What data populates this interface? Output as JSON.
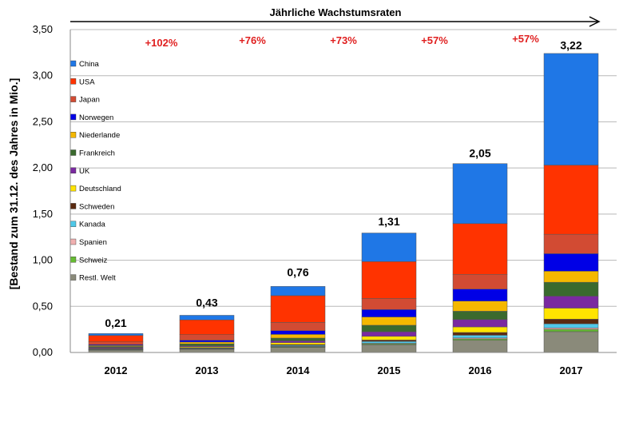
{
  "chart_data": {
    "type": "bar",
    "stacked": true,
    "title": "Jährliche Wachstumsraten",
    "ylabel": "[Bestand zum 31.12. des Jahres in Mio.]",
    "xlabel": "",
    "ylim": [
      0,
      3.5
    ],
    "ytick_step": 0.5,
    "ytick_labels": [
      "0,00",
      "0,50",
      "1,00",
      "1,50",
      "2,00",
      "2,50",
      "3,00",
      "3,50"
    ],
    "grid": true,
    "legend_position": "left",
    "categories": [
      "2012",
      "2013",
      "2014",
      "2015",
      "2016",
      "2017"
    ],
    "totals": [
      0.21,
      0.43,
      0.76,
      1.31,
      2.05,
      3.22
    ],
    "total_labels": [
      "0,21",
      "0,43",
      "0,76",
      "1,31",
      "2,05",
      "3,22"
    ],
    "growth_rates": [
      "+102%",
      "+76%",
      "+73%",
      "+57%",
      "+57%"
    ],
    "series": [
      {
        "name": "China",
        "color": "#1f77e6",
        "values": [
          0.02,
          0.05,
          0.1,
          0.31,
          0.65,
          1.21
        ]
      },
      {
        "name": "USA",
        "color": "#ff3300",
        "values": [
          0.07,
          0.16,
          0.29,
          0.4,
          0.55,
          0.75
        ]
      },
      {
        "name": "Japan",
        "color": "#d24b33",
        "values": [
          0.03,
          0.06,
          0.09,
          0.12,
          0.16,
          0.21
        ]
      },
      {
        "name": "Norwegen",
        "color": "#0000e6",
        "values": [
          0.01,
          0.02,
          0.04,
          0.08,
          0.13,
          0.19
        ]
      },
      {
        "name": "Niederlande",
        "color": "#f5b800",
        "values": [
          0.01,
          0.02,
          0.04,
          0.09,
          0.11,
          0.12
        ]
      },
      {
        "name": "Frankreich",
        "color": "#3a6a2e",
        "values": [
          0.01,
          0.02,
          0.03,
          0.07,
          0.09,
          0.15
        ]
      },
      {
        "name": "UK",
        "color": "#7a2aa0",
        "values": [
          0.01,
          0.01,
          0.02,
          0.05,
          0.08,
          0.13
        ]
      },
      {
        "name": "Deutschland",
        "color": "#ffe400",
        "values": [
          0.005,
          0.01,
          0.02,
          0.04,
          0.06,
          0.12
        ]
      },
      {
        "name": "Schweden",
        "color": "#5a2a10",
        "values": [
          0.005,
          0.005,
          0.01,
          0.015,
          0.03,
          0.05
        ]
      },
      {
        "name": "Kanada",
        "color": "#4fc8e8",
        "values": [
          0.005,
          0.005,
          0.01,
          0.02,
          0.03,
          0.045
        ]
      },
      {
        "name": "Spanien",
        "color": "#f0b0b0",
        "values": [
          0.002,
          0.003,
          0.005,
          0.006,
          0.01,
          0.015
        ]
      },
      {
        "name": "Schweiz",
        "color": "#66bb33",
        "values": [
          0.003,
          0.005,
          0.006,
          0.01,
          0.015,
          0.025
        ]
      },
      {
        "name": "Restl. Welt",
        "color": "#8a8a7a",
        "values": [
          0.025,
          0.035,
          0.055,
          0.084,
          0.132,
          0.226
        ]
      }
    ]
  }
}
